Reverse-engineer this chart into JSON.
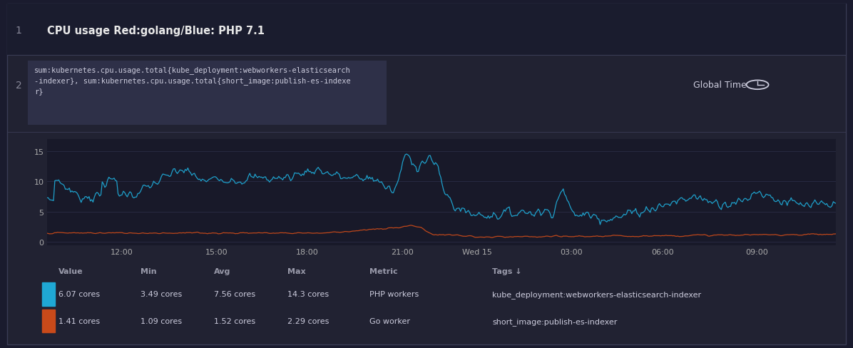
{
  "title": "CPU usage Red:golang/Blue: PHP 7.1",
  "panel_bg": "#1e2030",
  "outer_bg": "#212232",
  "plot_bg": "#181929",
  "query_box_bg": "#2a2c3e",
  "title_color": "#e0e0e0",
  "text_color": "#cccccc",
  "dim_text_color": "#888899",
  "grid_color": "#2a2d45",
  "border_color": "#3a3c55",
  "blue_color": "#1fa8d4",
  "red_color": "#c94a1a",
  "x_tick_labels": [
    "12:00",
    "15:00",
    "18:00",
    "21:00",
    "Wed 15",
    "03:00",
    "06:00",
    "09:00"
  ],
  "y_ticks": [
    0,
    5,
    10,
    15
  ],
  "ylim": [
    -0.5,
    17.0
  ],
  "legend_headers": [
    "Value",
    "Min",
    "Avg",
    "Max",
    "Metric",
    "Tags ↓"
  ],
  "legend_row1": [
    "6.07 cores",
    "3.49 cores",
    "7.56 cores",
    "14.3 cores",
    "PHP workers",
    "kube_deployment:webworkers-elasticsearch-indexer"
  ],
  "legend_row2": [
    "1.41 cores",
    "1.09 cores",
    "1.52 cores",
    "2.29 cores",
    "Go worker",
    "short_image:publish-es-indexer"
  ],
  "n_points": 600
}
